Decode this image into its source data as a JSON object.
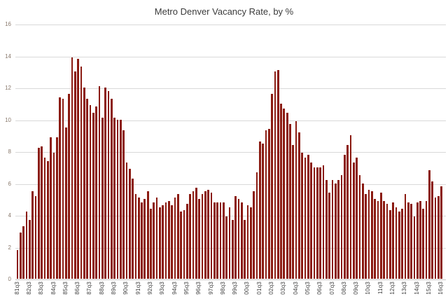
{
  "title": "Metro Denver Vacancy Rate, by %",
  "colors": {
    "bar": "#8b1b12",
    "gridline": "#d9d9d9",
    "axis_line": "#c6c6c6",
    "y_tick_text": "#8a7a6d",
    "x_tick_text": "#3f3f3f",
    "title_text": "#3b3b3b",
    "background": "#ffffff"
  },
  "chart_data": {
    "type": "bar",
    "title": "Metro Denver Vacancy Rate, by %",
    "xlabel": "",
    "ylabel": "",
    "ylim": [
      0,
      16
    ],
    "y_ticks": [
      0,
      2,
      4,
      6,
      8,
      10,
      12,
      14,
      16
    ],
    "x_tick_every": 4,
    "grid": "horizontal",
    "legend_position": "none",
    "categories": [
      "81q3",
      "81q4",
      "82q1",
      "82q2",
      "82q3",
      "82q4",
      "83q1",
      "83q2",
      "83q3",
      "83q4",
      "84q1",
      "84q2",
      "84q3",
      "84q4",
      "85q1",
      "85q2",
      "85q3",
      "85q4",
      "86q1",
      "86q2",
      "86q3",
      "86q4",
      "87q1",
      "87q2",
      "87q3",
      "87q4",
      "88q1",
      "88q2",
      "88q3",
      "88q4",
      "89q1",
      "89q2",
      "89q3",
      "89q4",
      "90q1",
      "90q2",
      "90q3",
      "90q4",
      "91q1",
      "91q2",
      "91q3",
      "91q4",
      "92q1",
      "92q2",
      "92q3",
      "92q4",
      "93q1",
      "93q2",
      "93q3",
      "93q4",
      "94q1",
      "94q2",
      "94q3",
      "94q4",
      "95q1",
      "95q2",
      "95q3",
      "95q4",
      "96q1",
      "96q2",
      "96q3",
      "96q4",
      "97q1",
      "97q2",
      "97q3",
      "97q4",
      "98q1",
      "98q2",
      "98q3",
      "98q4",
      "99q1",
      "99q2",
      "99q3",
      "99q4",
      "00q1",
      "00q2",
      "00q3",
      "00q4",
      "01q1",
      "01q2",
      "01q3",
      "01q4",
      "02q1",
      "02q2",
      "02q3",
      "02q4",
      "03q1",
      "03q2",
      "03q3",
      "03q4",
      "04q1",
      "04q2",
      "04q3",
      "04q4",
      "05q1",
      "05q2",
      "05q3",
      "05q4",
      "06q1",
      "06q2",
      "06q3",
      "06q4",
      "07q1",
      "07q2",
      "07q3",
      "07q4",
      "08q1",
      "08q2",
      "08q3",
      "08q4",
      "09q1",
      "09q2",
      "09q3",
      "09q4",
      "10q1",
      "10q2",
      "10q3",
      "10q4",
      "11q1",
      "11q2",
      "11q3",
      "11q4",
      "12q1",
      "12q2",
      "12q3",
      "12q4",
      "13q1",
      "13q2",
      "13q3",
      "13q4",
      "14q1",
      "14q2",
      "14q3",
      "14q4",
      "15q1",
      "15q2",
      "15q3",
      "15q4",
      "16q1",
      "16q2",
      "16q3"
    ],
    "values": [
      1.8,
      2.9,
      3.3,
      4.2,
      3.7,
      5.5,
      5.2,
      8.2,
      8.3,
      7.6,
      7.4,
      8.9,
      7.9,
      8.9,
      11.4,
      11.3,
      9.5,
      11.6,
      13.9,
      13.0,
      13.8,
      13.3,
      12.0,
      11.3,
      10.9,
      10.4,
      10.8,
      12.1,
      10.1,
      12.0,
      11.8,
      11.3,
      10.1,
      10.0,
      10.0,
      9.3,
      7.3,
      6.9,
      6.3,
      5.3,
      5.1,
      4.8,
      5.0,
      5.5,
      4.4,
      4.8,
      5.1,
      4.5,
      4.6,
      4.8,
      4.9,
      4.6,
      5.1,
      5.3,
      4.2,
      4.3,
      4.7,
      5.3,
      5.5,
      5.7,
      5.0,
      5.3,
      5.5,
      5.6,
      5.4,
      4.8,
      4.8,
      4.8,
      4.8,
      3.9,
      4.5,
      3.7,
      5.2,
      5.0,
      4.8,
      3.7,
      4.6,
      4.5,
      5.5,
      6.7,
      8.6,
      8.5,
      9.3,
      9.4,
      11.6,
      13.0,
      13.1,
      11.0,
      10.7,
      10.4,
      9.7,
      8.4,
      9.9,
      9.2,
      7.9,
      7.6,
      7.8,
      7.3,
      7.0,
      7.0,
      7.0,
      7.1,
      6.2,
      5.4,
      6.2,
      6.0,
      6.2,
      6.5,
      7.8,
      8.4,
      9.0,
      7.3,
      7.6,
      6.5,
      6.0,
      5.3,
      5.6,
      5.5,
      5.0,
      4.9,
      5.4,
      4.9,
      4.7,
      4.3,
      4.8,
      4.5,
      4.2,
      4.4,
      5.3,
      4.8,
      4.7,
      3.9,
      4.8,
      4.9,
      4.4,
      4.9,
      6.8,
      6.1,
      5.1,
      5.2,
      5.8
    ]
  }
}
